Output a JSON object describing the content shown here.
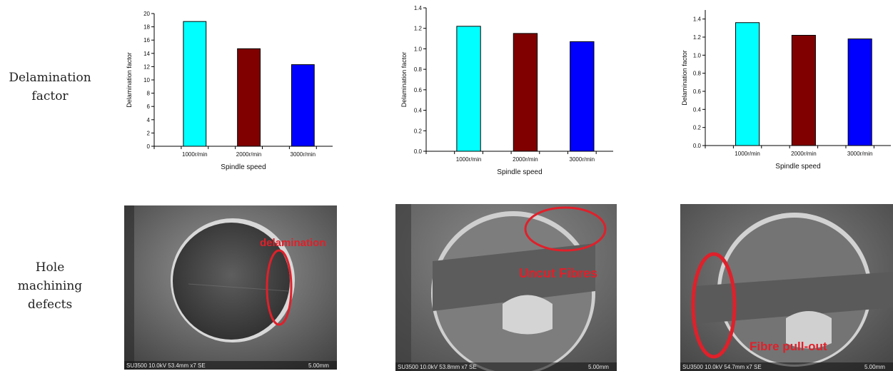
{
  "rows": {
    "top_label": "Delamination factor",
    "bottom_label": "Hole machining defects"
  },
  "chart_data": [
    {
      "type": "bar",
      "categories": [
        "1000r/min",
        "2000r/min",
        "3000r/min"
      ],
      "values": [
        18.8,
        14.7,
        12.3
      ],
      "colors": [
        "#00ffff",
        "#800000",
        "#0000ff"
      ],
      "ylim": [
        0,
        20
      ],
      "yticks": [
        "0",
        "2",
        "4",
        "6",
        "8",
        "10",
        "12",
        "14",
        "16",
        "18",
        "20"
      ],
      "xlabel": "Spindle speed",
      "ylabel": "Delamination factor"
    },
    {
      "type": "bar",
      "categories": [
        "1000r/min",
        "2000r/min",
        "3000r/min"
      ],
      "values": [
        1.22,
        1.15,
        1.07
      ],
      "colors": [
        "#00ffff",
        "#800000",
        "#0000ff"
      ],
      "ylim": [
        0,
        1.4
      ],
      "yticks": [
        "0.0",
        "0.2",
        "0.4",
        "0.6",
        "0.8",
        "1.0",
        "1.2",
        "1.4"
      ],
      "xlabel": "Spindle speed",
      "ylabel": "Delamination factor"
    },
    {
      "type": "bar",
      "categories": [
        "1000r/min",
        "2000r/min",
        "3000r/min"
      ],
      "values": [
        1.36,
        1.22,
        1.18
      ],
      "colors": [
        "#00ffff",
        "#800000",
        "#0000ff"
      ],
      "ylim": [
        0,
        1.5
      ],
      "yticks": [
        "0.0",
        "0.2",
        "0.4",
        "0.6",
        "0.8",
        "1.0",
        "1.2",
        "1.4"
      ],
      "xlabel": "Spindle speed",
      "ylabel": "Delamination factor"
    }
  ],
  "photos": [
    {
      "annotation": "delamination",
      "caption": "SU3500 10.0kV 53.4mm x7 SE",
      "scale": "5.00mm"
    },
    {
      "annotation": "Uncut Fibres",
      "caption": "SU3500 10.0kV 53.8mm x7 SE",
      "scale": "5.00mm"
    },
    {
      "annotation": "Fibre pull-out",
      "caption": "SU3500 10.0kV 54.7mm x7 SE",
      "scale": "5.00mm"
    }
  ]
}
